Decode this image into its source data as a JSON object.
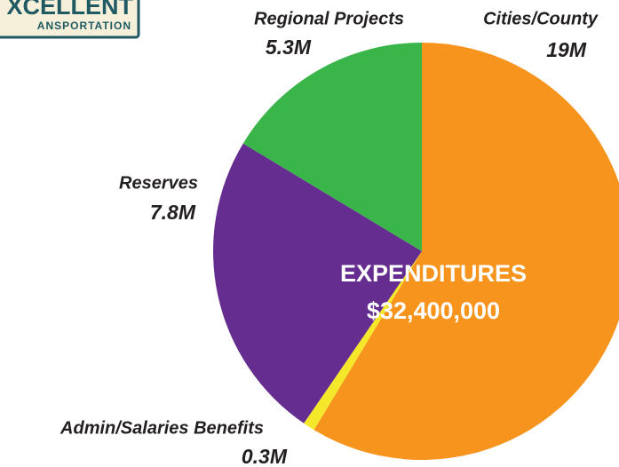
{
  "chart_data": {
    "type": "pie",
    "logo": {
      "title": "XCELLENT",
      "subtitle": "ANSPORTATION"
    },
    "annotations": [
      "EXPENDITURES",
      "$32,400,000"
    ],
    "categories": [
      "Cities/County",
      "Admin/Salaries Benefits",
      "Reserves",
      "Regional Projects"
    ],
    "values": [
      19,
      0.3,
      7.8,
      5.3
    ],
    "value_labels": [
      "19M",
      "0.3M",
      "7.8M",
      "5.3M"
    ],
    "colors": [
      "#f7941d",
      "#f5e72a",
      "#662d91",
      "#39b54a"
    ]
  }
}
